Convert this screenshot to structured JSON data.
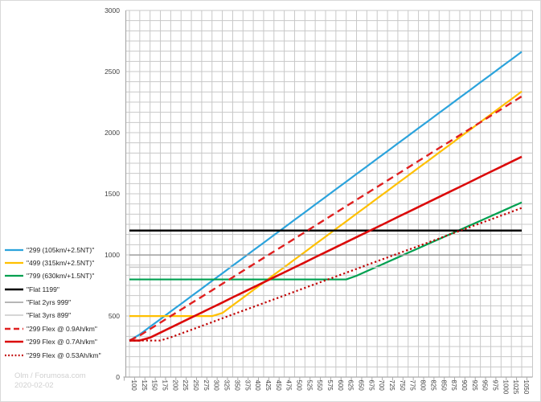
{
  "watermark": {
    "line1": "Olm / Forumosa.com",
    "line2": "2020-02-02"
  },
  "chart_data": {
    "type": "line",
    "title": "",
    "xlabel": "",
    "ylabel": "",
    "ylim": [
      0,
      3000
    ],
    "y_ticks": [
      0,
      500,
      1000,
      1500,
      2000,
      2500,
      3000
    ],
    "grid": "both",
    "grid_color": "#c8c8c8",
    "axis_color": "#ababab",
    "tick_label_color": "#3f3f3f",
    "legend_position": "left",
    "x": [
      100,
      125,
      150,
      175,
      200,
      225,
      250,
      275,
      300,
      325,
      350,
      375,
      400,
      425,
      450,
      475,
      500,
      525,
      550,
      575,
      600,
      625,
      650,
      675,
      700,
      725,
      750,
      775,
      800,
      825,
      850,
      875,
      900,
      925,
      950,
      975,
      1000,
      1025,
      1050
    ],
    "series": [
      {
        "name": "\"299 (105km/+2.5NT)\"",
        "color": "#2ba3dc",
        "style": "solid",
        "width": 2.2,
        "values": [
          299,
          349,
          412,
          474,
          537,
          599,
          662,
          724,
          787,
          849,
          912,
          974,
          1037,
          1099,
          1162,
          1224,
          1287,
          1349,
          1412,
          1474,
          1537,
          1599,
          1662,
          1724,
          1787,
          1849,
          1912,
          1974,
          2037,
          2099,
          2162,
          2224,
          2287,
          2349,
          2412,
          2474,
          2537,
          2599,
          2662
        ]
      },
      {
        "name": "\"499 (315km/+2.5NT)\"",
        "color": "#ffc000",
        "style": "solid",
        "width": 2.2,
        "values": [
          499,
          499,
          499,
          499,
          499,
          499,
          499,
          499,
          499,
          524,
          587,
          649,
          712,
          774,
          837,
          899,
          962,
          1024,
          1087,
          1149,
          1212,
          1274,
          1337,
          1399,
          1462,
          1524,
          1587,
          1649,
          1712,
          1774,
          1837,
          1899,
          1962,
          2024,
          2087,
          2149,
          2212,
          2274,
          2337
        ]
      },
      {
        "name": "\"799 (630km/+1.5NT)\"",
        "color": "#00a050",
        "style": "solid",
        "width": 2.2,
        "values": [
          799,
          799,
          799,
          799,
          799,
          799,
          799,
          799,
          799,
          799,
          799,
          799,
          799,
          799,
          799,
          799,
          799,
          799,
          799,
          799,
          799,
          799,
          829,
          867,
          904,
          942,
          979,
          1017,
          1054,
          1092,
          1129,
          1167,
          1204,
          1242,
          1279,
          1317,
          1354,
          1392,
          1429
        ]
      },
      {
        "name": "\"Flat 1199\"",
        "color": "#000000",
        "style": "solid",
        "width": 2.4,
        "constant": 1199
      },
      {
        "name": "\"Flat 2yrs 999\"",
        "color": "#9e9e9e",
        "style": "solid",
        "width": 1.5,
        "constant": 999
      },
      {
        "name": "\"Flat 3yrs 899\"",
        "color": "#c9c9c9",
        "style": "solid",
        "width": 1.5,
        "constant": 899
      },
      {
        "name": "\"299 Flex @ 0.9Ah/km\"",
        "color": "#e02020",
        "style": "dashed",
        "width": 2.4,
        "values": [
          299,
          340,
          393,
          446,
          499,
          552,
          605,
          657,
          710,
          763,
          816,
          869,
          922,
          975,
          1028,
          1080,
          1133,
          1186,
          1239,
          1292,
          1345,
          1398,
          1451,
          1503,
          1556,
          1609,
          1662,
          1715,
          1768,
          1821,
          1874,
          1926,
          1979,
          2032,
          2085,
          2138,
          2191,
          2244,
          2297
        ]
      },
      {
        "name": "\"299 Flex @ 0.7Ah/km\"",
        "color": "#db0a0a",
        "style": "solid",
        "width": 2.6,
        "values": [
          299,
          299,
          323,
          364,
          405,
          446,
          487,
          528,
          569,
          610,
          652,
          693,
          734,
          775,
          816,
          857,
          898,
          939,
          981,
          1022,
          1063,
          1104,
          1145,
          1186,
          1227,
          1268,
          1310,
          1351,
          1392,
          1433,
          1474,
          1515,
          1556,
          1597,
          1639,
          1680,
          1721,
          1762,
          1803
        ]
      },
      {
        "name": "\"299 Flex @ 0.53Ah/km\"",
        "color": "#c00000",
        "style": "dotted",
        "width": 2.2,
        "values": [
          299,
          299,
          299,
          299,
          325,
          356,
          387,
          418,
          449,
          481,
          512,
          543,
          574,
          605,
          636,
          667,
          699,
          730,
          761,
          792,
          823,
          854,
          885,
          917,
          948,
          979,
          1010,
          1041,
          1072,
          1103,
          1134,
          1166,
          1197,
          1228,
          1259,
          1290,
          1321,
          1352,
          1384
        ]
      }
    ]
  }
}
